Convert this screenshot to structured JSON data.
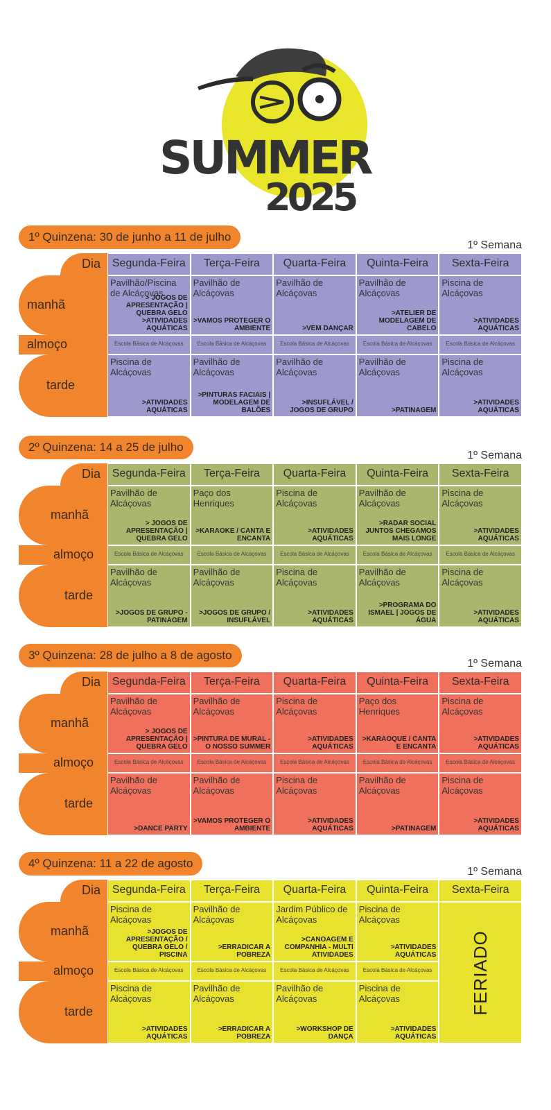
{
  "logo": {
    "title": "SUMMER",
    "year": "2025"
  },
  "semana_label": "1º Semana",
  "row_labels": {
    "dia": "Dia",
    "manha": "manhã",
    "almoco": "almoço",
    "tarde": "tarde"
  },
  "days": [
    "Segunda-Feira",
    "Terça-Feira",
    "Quarta-Feira",
    "Quinta-Feira",
    "Sexta-Feira"
  ],
  "colors": {
    "orange": "#f0852d",
    "q1": "#9e99cc",
    "q2": "#aab56e",
    "q3": "#ef715d",
    "q4": "#e8e22f"
  },
  "quinzenas": [
    {
      "title": "1º Quinzena: 30 de junho a 11 de julho",
      "manha": [
        {
          "place": "Pavilhão/Piscina de Alcáçovas",
          "activity": "> JOGOS DE APRESENTAÇÃO | QUEBRA GELO >ATIVIDADES AQUÁTICAS"
        },
        {
          "place": "Pavilhão de Alcáçovas",
          "activity": ">VAMOS PROTEGER O AMBIENTE"
        },
        {
          "place": "Pavilhão de Alcáçovas",
          "activity": ">VEM DANÇAR"
        },
        {
          "place": "Pavilhão de Alcáçovas",
          "activity": ">ATELIER DE MODELAGEM DE CABELO"
        },
        {
          "place": "Piscina de Alcáçovas",
          "activity": ">ATIVIDADES AQUÁTICAS"
        }
      ],
      "almoco": [
        "Escola Básica de Alcáçovas",
        "Escola Básica de Alcáçovas",
        "Escola Básica de Alcáçovas",
        "Escola Básica de Alcáçovas",
        "Escola Básica de Alcáçovas"
      ],
      "tarde": [
        {
          "place": "Piscina de Alcáçovas",
          "activity": ">ATIVIDADES AQUÁTICAS"
        },
        {
          "place": "Pavilhão de Alcáçovas",
          "activity": ">PINTURAS FACIAIS | MODELAGEM DE BALÕES"
        },
        {
          "place": "Pavilhão de Alcáçovas",
          "activity": ">INSUFLÁVEL / JOGOS DE GRUPO"
        },
        {
          "place": "Pavilhão de Alcáçovas",
          "activity": ">PATINAGEM"
        },
        {
          "place": "Piscina de Alcáçovas",
          "activity": ">ATIVIDADES AQUÁTICAS"
        }
      ]
    },
    {
      "title": "2º Quinzena: 14 a 25 de julho",
      "manha": [
        {
          "place": "Pavilhão de Alcáçovas",
          "activity": "> JOGOS DE APRESENTAÇÃO | QUEBRA GELO"
        },
        {
          "place": "Paço dos Henriques",
          "activity": ">KARAOKE / CANTA E ENCANTA"
        },
        {
          "place": "Piscina de Alcáçovas",
          "activity": ">ATIVIDADES AQUÁTICAS"
        },
        {
          "place": "Pavilhão de Alcáçovas",
          "activity": ">RADAR SOCIAL JUNTOS CHEGAMOS MAIS LONGE"
        },
        {
          "place": "Piscina de Alcáçovas",
          "activity": ">ATIVIDADES AQUÁTICAS"
        }
      ],
      "almoco": [
        "Escola Básica de Alcáçovas",
        "Escola Básica de Alcáçovas",
        "Escola Básica de Alcáçovas",
        "Escola Básica de Alcáçovas",
        "Escola Básica de Alcáçovas"
      ],
      "tarde": [
        {
          "place": "Pavilhão de Alcáçovas",
          "activity": ">JOGOS DE GRUPO - PATINAGEM"
        },
        {
          "place": "Pavilhão de Alcáçovas",
          "activity": ">JOGOS DE GRUPO / INSUFLÁVEL"
        },
        {
          "place": "Piscina de Alcáçovas",
          "activity": ">ATIVIDADES AQUÁTICAS"
        },
        {
          "place": "Pavilhão de Alcáçovas",
          "activity": ">PROGRAMA DO ISMAEL | JOGOS DE ÁGUA"
        },
        {
          "place": "Piscina de Alcáçovas",
          "activity": ">ATIVIDADES AQUÁTICAS"
        }
      ]
    },
    {
      "title": "3º Quinzena: 28 de julho a 8 de agosto",
      "manha": [
        {
          "place": "Pavilhão de Alcáçovas",
          "activity": "> JOGOS DE APRESENTAÇÃO | QUEBRA GELO"
        },
        {
          "place": "Pavilhão de Alcáçovas",
          "activity": ">PINTURA DE MURAL - O NOSSO SUMMER"
        },
        {
          "place": "Piscina de Alcáçovas",
          "activity": ">ATIVIDADES AQUÁTICAS"
        },
        {
          "place": "Paço dos Henriques",
          "activity": ">KARAOQUE / CANTA E ENCANTA"
        },
        {
          "place": "Piscina de Alcáçovas",
          "activity": ">ATIVIDADES AQUÁTICAS"
        }
      ],
      "almoco": [
        "Escola Básica de Alcáçovas",
        "Escola Básica de Alcáçovas",
        "Escola Básica de Alcáçovas",
        "Escola Básica de Alcáçovas",
        "Escola Básica de Alcáçovas"
      ],
      "tarde": [
        {
          "place": "Pavilhão de Alcáçovas",
          "activity": ">DANCE PARTY"
        },
        {
          "place": "Pavilhão de Alcáçovas",
          "activity": ">VAMOS PROTEGER O AMBIENTE"
        },
        {
          "place": "Piscina de Alcáçovas",
          "activity": ">ATIVIDADES AQUÁTICAS"
        },
        {
          "place": "Pavilhão de Alcáçovas",
          "activity": ">PATINAGEM"
        },
        {
          "place": "Piscina de Alcáçovas",
          "activity": ">ATIVIDADES AQUÁTICAS"
        }
      ]
    },
    {
      "title": "4º Quinzena: 11 a 22 de agosto",
      "manha": [
        {
          "place": "Piscina de Alcáçovas",
          "activity": ">JOGOS DE APRESENTAÇÃO / QUEBRA GELO / PISCINA"
        },
        {
          "place": "Pavilhão de Alcáçovas",
          "activity": ">ERRADICAR A POBREZA"
        },
        {
          "place": "Jardim Público de Alcáçovas",
          "activity": ">CANOAGEM E COMPANHIA - MULTI ATIVIDADES"
        },
        {
          "place": "Piscina de Alcáçovas",
          "activity": ">ATIVIDADES AQUÁTICAS"
        }
      ],
      "almoco": [
        "Escola Básica de Alcáçovas",
        "Escola Básica de Alcáçovas",
        "Escola Básica de Alcáçovas",
        "Escola Básica de Alcáçovas"
      ],
      "tarde": [
        {
          "place": "Piscina de Alcáçovas",
          "activity": ">ATIVIDADES AQUÁTICAS"
        },
        {
          "place": "Pavilhão de Alcáçovas",
          "activity": ">ERRADICAR A POBREZA"
        },
        {
          "place": "Pavilhão de Alcáçovas",
          "activity": ">WORKSHOP DE DANÇA"
        },
        {
          "place": "Piscina de Alcáçovas",
          "activity": ">ATIVIDADES AQUÁTICAS"
        }
      ],
      "feriado": "FERIADO"
    }
  ]
}
